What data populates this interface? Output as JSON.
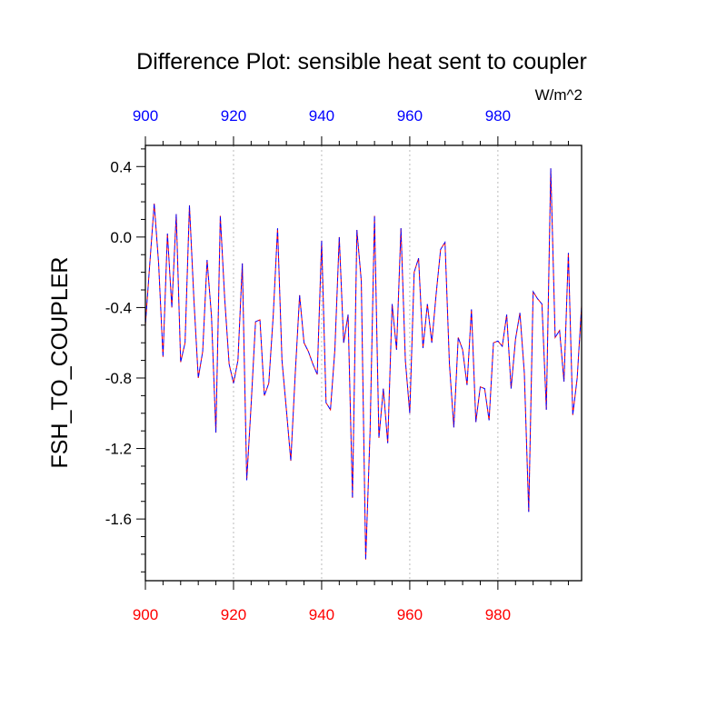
{
  "chart_data": {
    "type": "line",
    "title": "Difference Plot: sensible heat sent to coupler",
    "units": "W/m^2",
    "ylabel": "FSH_TO_COUPLER",
    "xlabel": "",
    "xlim": [
      900,
      999
    ],
    "ylim": [
      -1.95,
      0.52
    ],
    "x_ticks": [
      900,
      920,
      940,
      960,
      980
    ],
    "y_ticks": [
      0.4,
      0.0,
      -0.4,
      -0.8,
      -1.2,
      -1.6
    ],
    "y_tick_labels": [
      "0.4",
      "0.0",
      "-0.4",
      "-0.8",
      "-1.2",
      "-1.6"
    ],
    "x_tick_labels": [
      "900",
      "920",
      "940",
      "960",
      "980"
    ],
    "bottom_axis_color": "#ff0000",
    "top_axis_color": "#0000ff",
    "grid": "vertical dotted at major x ticks",
    "series": [
      {
        "color": "#ff0000",
        "style": "dashed",
        "x": [
          900,
          901,
          902,
          903,
          904,
          905,
          906,
          907,
          908,
          909,
          910,
          911,
          912,
          913,
          914,
          915,
          916,
          917,
          918,
          919,
          920,
          921,
          922,
          923,
          924,
          925,
          926,
          927,
          928,
          929,
          930,
          931,
          932,
          933,
          934,
          935,
          936,
          937,
          938,
          939,
          940,
          941,
          942,
          943,
          944,
          945,
          946,
          947,
          948,
          949,
          950,
          951,
          952,
          953,
          954,
          955,
          956,
          957,
          958,
          959,
          960,
          961,
          962,
          963,
          964,
          965,
          966,
          967,
          968,
          969,
          970,
          971,
          972,
          973,
          974,
          975,
          976,
          977,
          978,
          979,
          980,
          981,
          982,
          983,
          984,
          985,
          986,
          987,
          988,
          989,
          990,
          991,
          992,
          993,
          994,
          995,
          996,
          997,
          998,
          999
        ],
        "values": [
          -0.5,
          -0.15,
          0.19,
          -0.15,
          -0.68,
          0.02,
          -0.4,
          0.13,
          -0.71,
          -0.6,
          0.18,
          -0.35,
          -0.8,
          -0.65,
          -0.13,
          -0.45,
          -1.11,
          0.12,
          -0.35,
          -0.72,
          -0.83,
          -0.7,
          -0.15,
          -1.38,
          -0.95,
          -0.48,
          -0.47,
          -0.9,
          -0.83,
          -0.45,
          0.05,
          -0.7,
          -0.98,
          -1.27,
          -0.78,
          -0.33,
          -0.6,
          -0.65,
          -0.72,
          -0.78,
          -0.02,
          -0.94,
          -0.98,
          -0.64,
          0.0,
          -0.6,
          -0.44,
          -1.48,
          0.04,
          -0.25,
          -1.83,
          -1.1,
          0.12,
          -1.14,
          -0.86,
          -1.17,
          -0.38,
          -0.64,
          0.05,
          -0.7,
          -1.0,
          -0.2,
          -0.12,
          -0.63,
          -0.38,
          -0.6,
          -0.32,
          -0.07,
          -0.03,
          -0.72,
          -1.08,
          -0.57,
          -0.64,
          -0.84,
          -0.41,
          -1.05,
          -0.85,
          -0.86,
          -1.04,
          -0.6,
          -0.59,
          -0.62,
          -0.44,
          -0.86,
          -0.58,
          -0.43,
          -0.77,
          -1.56,
          -0.31,
          -0.35,
          -0.38,
          -0.98,
          0.39,
          -0.57,
          -0.53,
          -0.82,
          -0.09,
          -1.01,
          -0.8,
          -0.39
        ]
      },
      {
        "color": "#0000ff",
        "style": "dashed",
        "x": [
          900,
          901,
          902,
          903,
          904,
          905,
          906,
          907,
          908,
          909,
          910,
          911,
          912,
          913,
          914,
          915,
          916,
          917,
          918,
          919,
          920,
          921,
          922,
          923,
          924,
          925,
          926,
          927,
          928,
          929,
          930,
          931,
          932,
          933,
          934,
          935,
          936,
          937,
          938,
          939,
          940,
          941,
          942,
          943,
          944,
          945,
          946,
          947,
          948,
          949,
          950,
          951,
          952,
          953,
          954,
          955,
          956,
          957,
          958,
          959,
          960,
          961,
          962,
          963,
          964,
          965,
          966,
          967,
          968,
          969,
          970,
          971,
          972,
          973,
          974,
          975,
          976,
          977,
          978,
          979,
          980,
          981,
          982,
          983,
          984,
          985,
          986,
          987,
          988,
          989,
          990,
          991,
          992,
          993,
          994,
          995,
          996,
          997,
          998,
          999
        ],
        "values": [
          -0.5,
          -0.15,
          0.19,
          -0.15,
          -0.68,
          0.02,
          -0.4,
          0.13,
          -0.71,
          -0.6,
          0.18,
          -0.35,
          -0.8,
          -0.65,
          -0.13,
          -0.45,
          -1.11,
          0.12,
          -0.35,
          -0.72,
          -0.83,
          -0.7,
          -0.15,
          -1.38,
          -0.95,
          -0.48,
          -0.47,
          -0.9,
          -0.83,
          -0.45,
          0.05,
          -0.7,
          -0.98,
          -1.27,
          -0.78,
          -0.33,
          -0.6,
          -0.65,
          -0.72,
          -0.78,
          -0.02,
          -0.94,
          -0.98,
          -0.64,
          0.0,
          -0.6,
          -0.44,
          -1.48,
          0.04,
          -0.25,
          -1.83,
          -1.1,
          0.12,
          -1.14,
          -0.86,
          -1.17,
          -0.38,
          -0.64,
          0.05,
          -0.7,
          -1.0,
          -0.2,
          -0.12,
          -0.63,
          -0.38,
          -0.6,
          -0.32,
          -0.07,
          -0.03,
          -0.72,
          -1.08,
          -0.57,
          -0.64,
          -0.84,
          -0.41,
          -1.05,
          -0.85,
          -0.86,
          -1.04,
          -0.6,
          -0.59,
          -0.62,
          -0.44,
          -0.86,
          -0.58,
          -0.43,
          -0.77,
          -1.56,
          -0.31,
          -0.35,
          -0.38,
          -0.98,
          0.39,
          -0.57,
          -0.53,
          -0.82,
          -0.09,
          -1.01,
          -0.8,
          -0.39
        ]
      }
    ]
  }
}
